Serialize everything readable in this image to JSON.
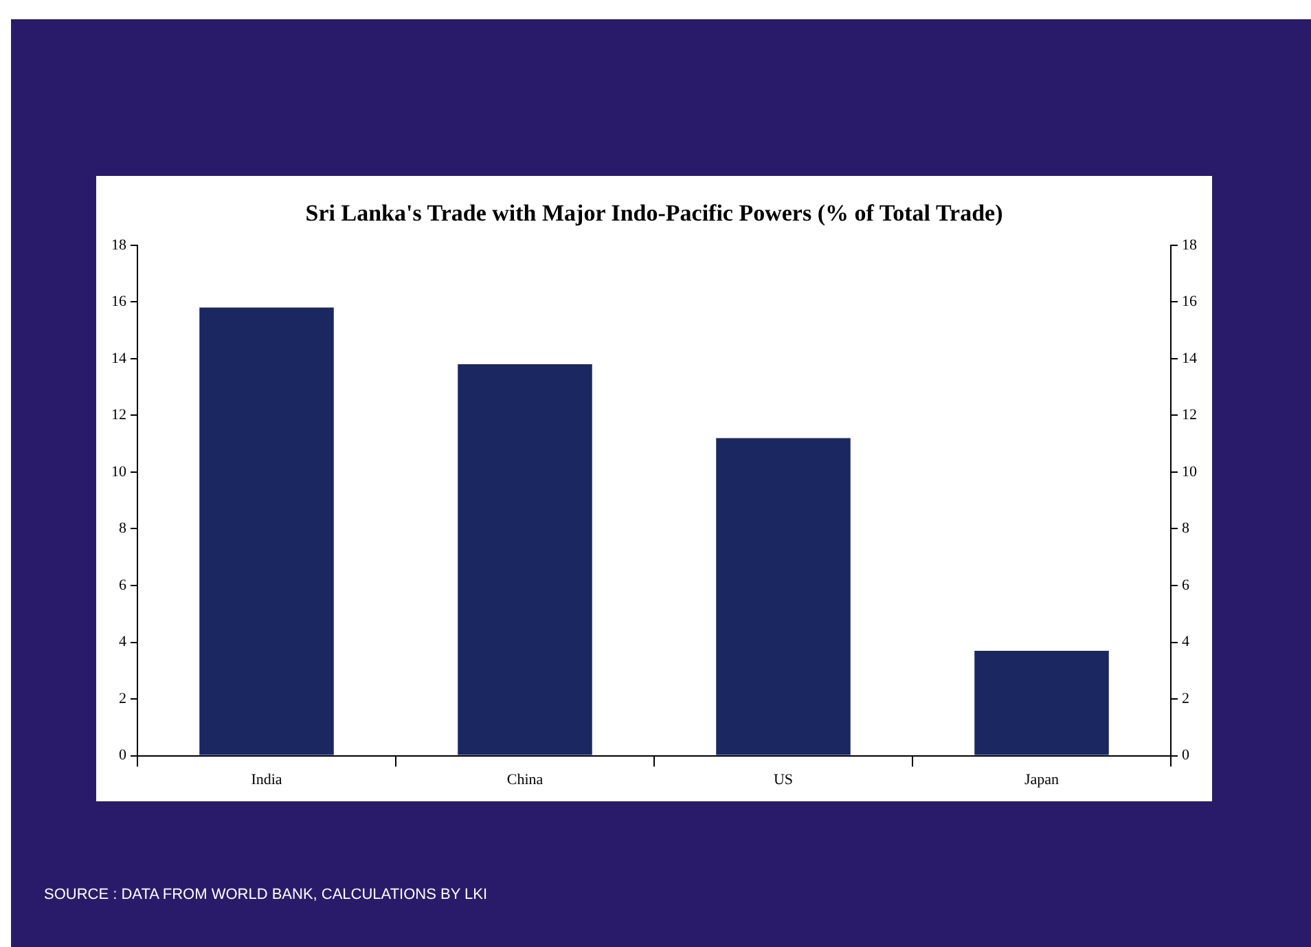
{
  "chart_data": {
    "type": "bar",
    "title": "Sri Lanka's Trade with Major Indo-Pacific Powers (% of Total Trade)",
    "categories": [
      "India",
      "China",
      "US",
      "Japan"
    ],
    "values": [
      15.8,
      13.8,
      11.2,
      3.7
    ],
    "color": "#1b2760",
    "ylim": [
      0,
      18
    ],
    "yticks": [
      0,
      2,
      4,
      6,
      8,
      10,
      12,
      14,
      16,
      18
    ],
    "y2lim": [
      0,
      18
    ],
    "y2ticks": [
      0,
      2,
      4,
      6,
      8,
      10,
      12,
      14,
      16,
      18
    ],
    "grid": false,
    "legend": false,
    "annotations": [
      "SOURCE : DATA FROM WORLD BANK, CALCULATIONS BY LKI"
    ]
  }
}
